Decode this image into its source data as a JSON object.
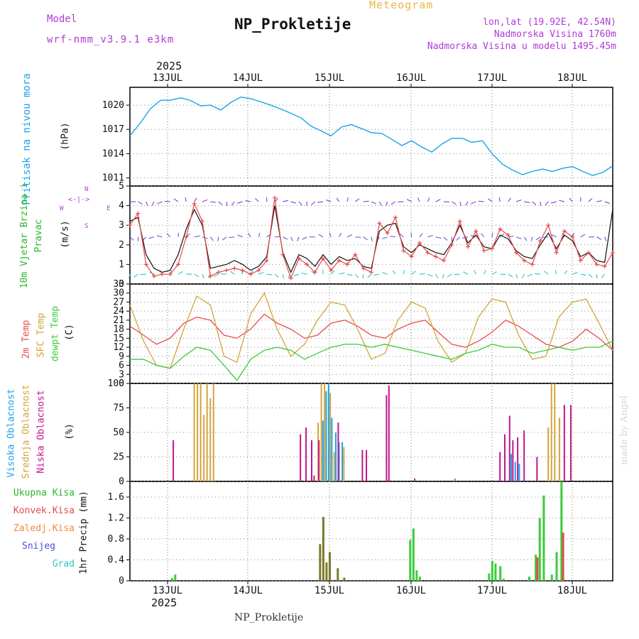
{
  "header": {
    "meteogram": "Meteogram",
    "model_label": "Model",
    "model_name": "wrf-nmm_v3.9.1 e3km",
    "station": "NP_Prokletije",
    "lonlat": "lon,lat (19.92E, 42.54N)",
    "elevation": "Nadmorska Visina 1760m",
    "model_elevation": "Nadmorska Visina u modelu 1495.45m",
    "year": "2025",
    "footer_station": "NP_Prokletije",
    "watermark": "made by Angel"
  },
  "colors": {
    "pressure": "#1aa3e8",
    "wind": "#2db52d",
    "wind_dir": "#b03ad6",
    "t2m": "#e84a4a",
    "tsfc": "#d4a33a",
    "dewpt": "#3acc3a",
    "cloud_high": "#1aa3e8",
    "cloud_mid": "#d4a33a",
    "cloud_low": "#c2168a",
    "precip_total": "#3acc3a",
    "precip_conv": "#e84a4a",
    "precip_frozen": "#f08a3a",
    "precip_snow": "#5050e0",
    "precip_grad": "#2ac6c6",
    "precip_olive": "#7a7a2a",
    "wind_speed_red": "#e84a4a"
  },
  "chart_data": [
    {
      "type": "line",
      "id": "pressure",
      "title": "Pritisak na nivou mora",
      "ylabel": "(hPa)",
      "ylim": [
        1010,
        1022.2
      ],
      "yticks": [
        1011,
        1014,
        1017,
        1020
      ],
      "x_day_offset": [
        0,
        0.13,
        0.25,
        0.38,
        0.5,
        0.63,
        0.75,
        0.88,
        1.0,
        1.13,
        1.25,
        1.38,
        1.5,
        1.63,
        1.75,
        1.88,
        2.0,
        2.13,
        2.25,
        2.38,
        2.5,
        2.63,
        2.75,
        2.88,
        3.0,
        3.13,
        3.25,
        3.38,
        3.5,
        3.63,
        3.75,
        3.88,
        4.0,
        4.13,
        4.25,
        4.38,
        4.5,
        4.63,
        4.75,
        4.88,
        5.0,
        5.13,
        5.25,
        5.38,
        5.5,
        5.63,
        5.75,
        5.88,
        6.0
      ],
      "values": [
        1016.2,
        1017.8,
        1019.5,
        1020.6,
        1020.6,
        1020.9,
        1020.6,
        1019.9,
        1020.0,
        1019.4,
        1020.3,
        1021.0,
        1020.8,
        1020.4,
        1020.0,
        1019.5,
        1019.0,
        1018.4,
        1017.4,
        1016.8,
        1016.2,
        1017.3,
        1017.6,
        1017.1,
        1016.6,
        1016.5,
        1015.8,
        1015.0,
        1015.6,
        1014.8,
        1014.2,
        1015.2,
        1015.9,
        1015.9,
        1015.4,
        1015.6,
        1014.0,
        1012.7,
        1012.0,
        1011.4,
        1011.8,
        1012.1,
        1011.8,
        1012.2,
        1012.4,
        1011.8,
        1011.3,
        1011.7,
        1012.5
      ]
    },
    {
      "type": "line",
      "id": "wind",
      "title": "10m Vjetar Brzina i Pravac",
      "ylabel": "(m/s)",
      "dir_legend": {
        "north": "N",
        "south": "S",
        "east": "E",
        "west": "W"
      },
      "ylim": [
        0,
        5
      ],
      "yticks": [
        0,
        1,
        2,
        3,
        4,
        5
      ],
      "x_day_offset": [
        0,
        0.1,
        0.2,
        0.3,
        0.4,
        0.5,
        0.6,
        0.7,
        0.8,
        0.9,
        1.0,
        1.1,
        1.2,
        1.3,
        1.4,
        1.5,
        1.6,
        1.7,
        1.8,
        1.9,
        2.0,
        2.1,
        2.2,
        2.3,
        2.4,
        2.5,
        2.6,
        2.7,
        2.8,
        2.9,
        3.0,
        3.1,
        3.2,
        3.3,
        3.4,
        3.5,
        3.6,
        3.7,
        3.8,
        3.9,
        4.0,
        4.1,
        4.2,
        4.3,
        4.4,
        4.5,
        4.6,
        4.7,
        4.8,
        4.9,
        5.0,
        5.1,
        5.2,
        5.3,
        5.4,
        5.5,
        5.6,
        5.7,
        5.8,
        5.9,
        6.0
      ],
      "values": [
        3.0,
        3.6,
        1.0,
        0.4,
        0.5,
        0.5,
        1.0,
        2.4,
        4.1,
        3.2,
        0.4,
        0.6,
        0.7,
        0.8,
        0.7,
        0.5,
        0.7,
        1.2,
        4.4,
        1.5,
        0.3,
        1.3,
        1.0,
        0.6,
        1.3,
        0.7,
        1.2,
        1.0,
        1.5,
        0.8,
        0.6,
        3.1,
        2.6,
        3.4,
        1.7,
        1.4,
        2.1,
        1.6,
        1.4,
        1.2,
        2.0,
        3.2,
        1.9,
        2.7,
        1.7,
        1.8,
        2.8,
        2.5,
        1.6,
        1.2,
        1.0,
        2.2,
        3.0,
        1.6,
        2.7,
        2.4,
        1.2,
        1.6,
        1.0,
        0.9,
        1.6
      ],
      "gust_values": [
        3.2,
        3.4,
        1.5,
        0.8,
        0.6,
        0.7,
        1.5,
        2.8,
        3.8,
        3.0,
        0.8,
        0.9,
        1.0,
        1.2,
        1.0,
        0.7,
        0.9,
        1.4,
        4.0,
        1.6,
        0.6,
        1.5,
        1.3,
        0.9,
        1.5,
        1.0,
        1.4,
        1.2,
        1.3,
        0.9,
        0.8,
        2.7,
        3.0,
        3.1,
        1.9,
        1.6,
        2.0,
        1.8,
        1.6,
        1.5,
        2.1,
        3.0,
        2.1,
        2.5,
        1.9,
        1.8,
        2.5,
        2.3,
        1.7,
        1.4,
        1.3,
        2.0,
        2.6,
        1.8,
        2.5,
        2.2,
        1.4,
        1.6,
        1.2,
        1.1,
        3.8
      ]
    },
    {
      "type": "line",
      "id": "temperature",
      "title": "2m Temp / SFC Temp / dewpt Temp",
      "labels": {
        "t2m": "2m Temp",
        "tsfc": "SFC Temp",
        "dewpt": "dewpt Temp"
      },
      "ylabel": "(C)",
      "ylim": [
        0,
        33
      ],
      "yticks": [
        0,
        3,
        6,
        9,
        12,
        15,
        18,
        21,
        24,
        27,
        30,
        33
      ],
      "x_day_offset": [
        0,
        0.17,
        0.33,
        0.5,
        0.67,
        0.83,
        1.0,
        1.17,
        1.33,
        1.5,
        1.67,
        1.83,
        2.0,
        2.17,
        2.33,
        2.5,
        2.67,
        2.83,
        3.0,
        3.17,
        3.33,
        3.5,
        3.67,
        3.83,
        4.0,
        4.17,
        4.33,
        4.5,
        4.67,
        4.83,
        5.0,
        5.17,
        5.33,
        5.5,
        5.67,
        5.83,
        6.0
      ],
      "series": [
        {
          "name": "2m Temp",
          "values": [
            19,
            16,
            13,
            15,
            20,
            22,
            21,
            16,
            15,
            18,
            23,
            20,
            18,
            15,
            16,
            20,
            21,
            19,
            16,
            15,
            18,
            20,
            21,
            17,
            13,
            12,
            14,
            17,
            21,
            19,
            16,
            13,
            12,
            14,
            18,
            15,
            11
          ]
        },
        {
          "name": "SFC Temp",
          "values": [
            26,
            14,
            6,
            5,
            18,
            29,
            26,
            9,
            7,
            23,
            30,
            18,
            9,
            13,
            21,
            27,
            26,
            18,
            8,
            10,
            21,
            27,
            25,
            14,
            7,
            10,
            22,
            28,
            27,
            16,
            8,
            9,
            22,
            27,
            28,
            20,
            11
          ]
        },
        {
          "name": "dewpt Temp",
          "values": [
            8,
            8,
            6,
            5,
            9,
            12,
            11,
            6,
            1,
            8,
            11,
            12,
            11,
            8,
            10,
            12,
            13,
            13,
            12,
            13,
            12,
            11,
            10,
            9,
            8,
            10,
            11,
            13,
            12,
            12,
            10,
            11,
            12,
            11,
            12,
            12,
            14
          ]
        }
      ]
    },
    {
      "type": "bar",
      "id": "clouds",
      "title": "Visoka Oblacnost / Srednja Oblacnost / Niska Oblacnost",
      "labels": {
        "high": "Visoka Oblacnost",
        "mid": "Srednja Oblacnost",
        "low": "Niska Oblacnost"
      },
      "ylabel": "(%)",
      "ylim": [
        0,
        100
      ],
      "yticks": [
        0,
        25,
        50,
        75,
        100
      ],
      "series": [
        {
          "name": "Visoka",
          "points": [
            [
              2.86,
              62
            ],
            [
              2.9,
              92
            ],
            [
              2.93,
              100
            ],
            [
              2.97,
              65
            ],
            [
              3.02,
              50
            ],
            [
              3.06,
              40
            ],
            [
              3.1,
              40
            ],
            [
              4.5,
              3
            ],
            [
              5.2,
              28
            ],
            [
              5.25,
              20
            ],
            [
              5.3,
              18
            ]
          ]
        },
        {
          "name": "Srednja",
          "points": [
            [
              1.26,
              100
            ],
            [
              1.3,
              100
            ],
            [
              1.34,
              100
            ],
            [
              1.38,
              68
            ],
            [
              1.42,
              100
            ],
            [
              1.46,
              85
            ],
            [
              1.5,
              100
            ],
            [
              2.8,
              60
            ],
            [
              2.84,
              100
            ],
            [
              2.88,
              100
            ],
            [
              2.95,
              90
            ],
            [
              3.0,
              30
            ],
            [
              3.12,
              35
            ],
            [
              5.66,
              55
            ],
            [
              5.7,
              100
            ],
            [
              5.74,
              100
            ],
            [
              5.8,
              65
            ]
          ]
        },
        {
          "name": "Niska",
          "points": [
            [
              1.0,
              42
            ],
            [
              2.58,
              48
            ],
            [
              2.65,
              55
            ],
            [
              2.72,
              42
            ],
            [
              2.75,
              6
            ],
            [
              2.81,
              42
            ],
            [
              3.05,
              60
            ],
            [
              3.35,
              32
            ],
            [
              3.4,
              32
            ],
            [
              3.65,
              88
            ],
            [
              3.68,
              98
            ],
            [
              4.0,
              3
            ],
            [
              5.06,
              30
            ],
            [
              5.12,
              48
            ],
            [
              5.18,
              67
            ],
            [
              5.22,
              42
            ],
            [
              5.28,
              45
            ],
            [
              5.36,
              52
            ],
            [
              5.52,
              25
            ],
            [
              5.86,
              78
            ],
            [
              5.94,
              78
            ]
          ]
        }
      ]
    },
    {
      "type": "bar",
      "id": "precip",
      "title": "1hr Precip",
      "ylabel": "1hr Precip (mm)",
      "labels": {
        "total": "Ukupna Kisa",
        "conv": "Konvek.Kisa",
        "frozen": "Zaledj.Kisa",
        "snow": "Snijeg",
        "grad": "Grad"
      },
      "ylim": [
        0,
        1.9
      ],
      "yticks": [
        0,
        0.4,
        0.8,
        1.2,
        1.6
      ],
      "series": [
        {
          "name": "Ukupna Kisa",
          "points": [
            [
              0.98,
              0.05
            ],
            [
              1.02,
              0.12
            ],
            [
              2.82,
              0.7
            ],
            [
              2.86,
              1.22
            ],
            [
              2.9,
              0.35
            ],
            [
              2.94,
              0.55
            ],
            [
              3.04,
              0.24
            ],
            [
              3.12,
              0.06
            ],
            [
              3.94,
              0.78
            ],
            [
              3.98,
              1.0
            ],
            [
              4.02,
              0.2
            ],
            [
              4.06,
              0.08
            ],
            [
              4.92,
              0.14
            ],
            [
              4.96,
              0.38
            ],
            [
              5.0,
              0.33
            ],
            [
              5.06,
              0.28
            ],
            [
              5.1,
              0.04
            ],
            [
              5.42,
              0.08
            ],
            [
              5.5,
              0.5
            ],
            [
              5.55,
              1.2
            ],
            [
              5.6,
              1.63
            ],
            [
              5.7,
              0.12
            ],
            [
              5.76,
              0.55
            ],
            [
              5.82,
              1.9
            ]
          ]
        },
        {
          "name": "Konvek.Kisa",
          "points": [
            [
              5.52,
              0.45
            ],
            [
              5.84,
              0.92
            ]
          ]
        }
      ]
    }
  ],
  "xaxis": {
    "days": [
      "13JUL",
      "14JUL",
      "15JUL",
      "16JUL",
      "17JUL",
      "18JUL"
    ]
  }
}
